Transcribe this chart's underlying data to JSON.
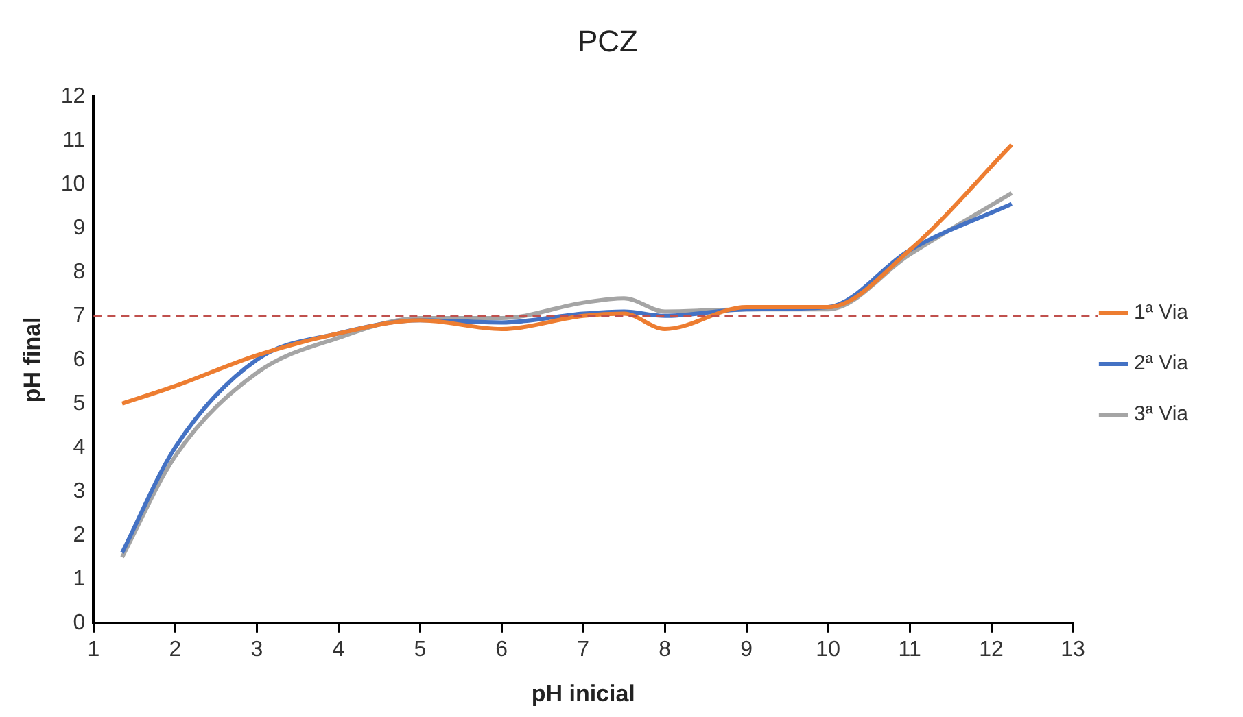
{
  "chart_data": {
    "type": "line",
    "title": "PCZ",
    "xlabel": "pH inicial",
    "ylabel": "pH final",
    "xlim": [
      1,
      13
    ],
    "xticks": [
      1,
      2,
      3,
      4,
      5,
      6,
      7,
      8,
      9,
      10,
      11,
      12,
      13
    ],
    "ylim": [
      0,
      12
    ],
    "yticks": [
      0,
      1,
      2,
      3,
      4,
      5,
      6,
      7,
      8,
      9,
      10,
      11,
      12
    ],
    "grid": false,
    "legend": "right",
    "marker": "none",
    "line_style": "solid",
    "ref_lines": [
      {
        "axis": "y",
        "value": 7,
        "color": "#c0504d",
        "line_style": "dashed"
      }
    ],
    "series": [
      {
        "name": "1ª Via",
        "color": "#ed7d31",
        "x": [
          1.35,
          2,
          3,
          4,
          5,
          6,
          7,
          7.5,
          8,
          9,
          10,
          11,
          12.25
        ],
        "values": [
          5.0,
          5.4,
          6.1,
          6.6,
          6.9,
          6.7,
          7.0,
          7.05,
          6.7,
          7.2,
          7.2,
          8.5,
          10.9
        ]
      },
      {
        "name": "2ª Via",
        "color": "#4472c4",
        "x": [
          1.35,
          2,
          3,
          4,
          5,
          6,
          7,
          7.5,
          8,
          9,
          10,
          11,
          12.25
        ],
        "values": [
          1.6,
          4.0,
          6.0,
          6.6,
          6.9,
          6.85,
          7.05,
          7.1,
          7.0,
          7.15,
          7.2,
          8.5,
          9.55
        ]
      },
      {
        "name": "3ª Via",
        "color": "#a5a5a5",
        "x": [
          1.35,
          2,
          3,
          4,
          5,
          6,
          7,
          7.5,
          8,
          9,
          10,
          11,
          12.25
        ],
        "values": [
          1.5,
          3.8,
          5.7,
          6.5,
          6.95,
          6.95,
          7.3,
          7.4,
          7.1,
          7.15,
          7.15,
          8.4,
          9.8
        ]
      }
    ]
  }
}
